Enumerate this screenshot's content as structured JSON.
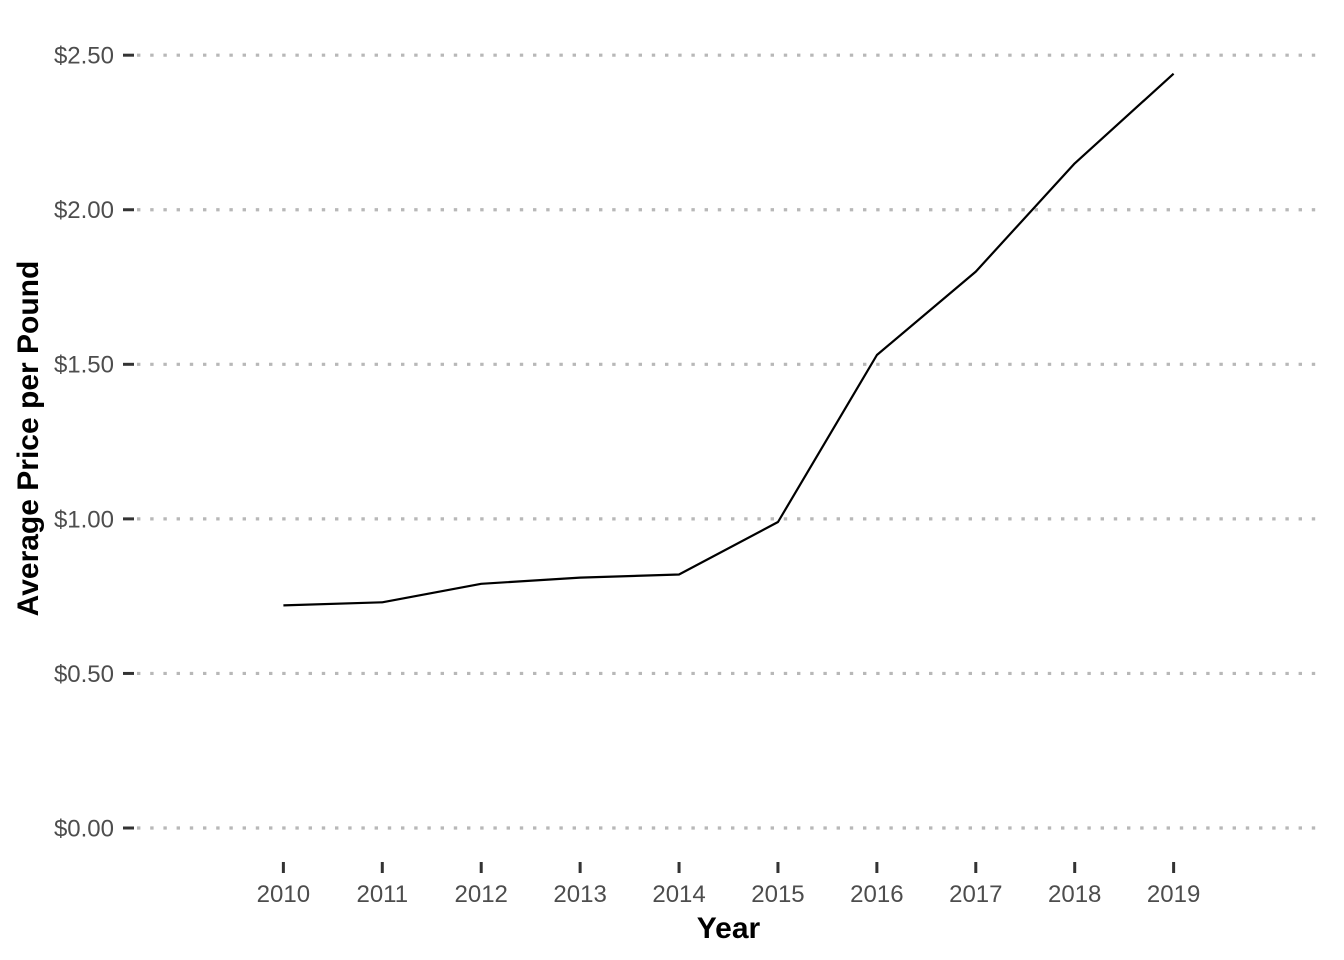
{
  "chart_data": {
    "type": "line",
    "title": "",
    "xlabel": "Year",
    "ylabel": "Average Price per Pound",
    "x": [
      2010,
      2011,
      2012,
      2013,
      2014,
      2015,
      2016,
      2017,
      2018,
      2019
    ],
    "series": [
      {
        "name": "Average Price per Pound",
        "values": [
          0.72,
          0.73,
          0.79,
          0.81,
          0.82,
          0.99,
          1.53,
          1.8,
          2.15,
          2.44
        ]
      }
    ],
    "x_tick_labels": [
      "2010",
      "2011",
      "2012",
      "2013",
      "2014",
      "2015",
      "2016",
      "2017",
      "2018",
      "2019"
    ],
    "y_tick_values": [
      0,
      0.5,
      1.0,
      1.5,
      2.0,
      2.5
    ],
    "y_tick_labels": [
      "$0.00",
      "$0.50",
      "$1.00",
      "$1.50",
      "$2.00",
      "$2.50"
    ],
    "xlim": [
      2008.5,
      2020.5
    ],
    "ylim": [
      -0.11,
      2.63
    ],
    "grid": "horizontal major gridlines only, dotted",
    "legend": "none",
    "colors": {
      "line": "#000000",
      "grid": "#b8b8b8",
      "tick_mark": "#333333",
      "tick_label": "#4d4d4d",
      "axis_title": "#000000",
      "background": "#ffffff"
    }
  }
}
